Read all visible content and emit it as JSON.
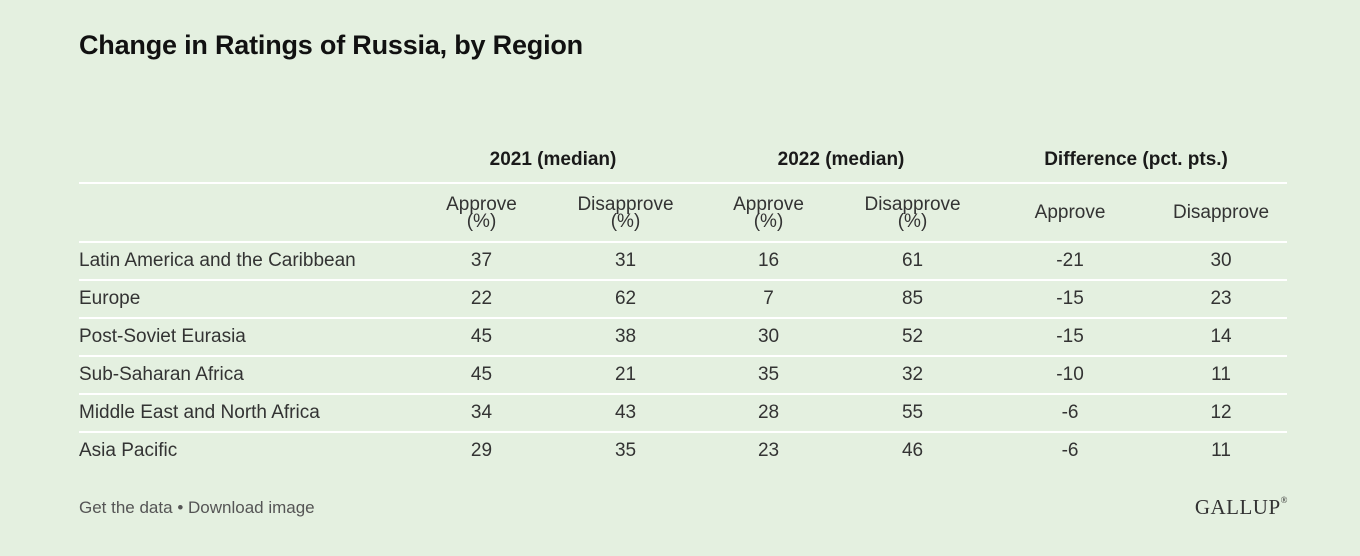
{
  "title": "Change in Ratings of Russia, by Region",
  "footer": {
    "get_data": "Get the data",
    "separator": "•",
    "download": "Download image"
  },
  "brand": {
    "logo_text": "GALLUP",
    "logo_mark": "®"
  },
  "colors": {
    "background": "#e4f0e0",
    "row_divider": "#ffffff",
    "text": "#333333"
  },
  "chart_data": {
    "type": "table",
    "title": "Change in Ratings of Russia, by Region",
    "column_groups": [
      "2021 (median)",
      "2022 (median)",
      "Difference (pct. pts.)"
    ],
    "columns": [
      {
        "line1": "Approve",
        "line2": "(%)"
      },
      {
        "line1": "Disapprove",
        "line2": "(%)"
      },
      {
        "line1": "Approve",
        "line2": "(%)"
      },
      {
        "line1": "Disapprove",
        "line2": "(%)"
      },
      {
        "line1": "Approve",
        "line2": ""
      },
      {
        "line1": "Disapprove",
        "line2": ""
      }
    ],
    "rows": [
      {
        "region": "Latin America and the Caribbean",
        "values": [
          "37",
          "31",
          "16",
          "61",
          "-21",
          "30"
        ]
      },
      {
        "region": "Europe",
        "values": [
          "22",
          "62",
          "7",
          "85",
          "-15",
          "23"
        ]
      },
      {
        "region": "Post-Soviet Eurasia",
        "values": [
          "45",
          "38",
          "30",
          "52",
          "-15",
          "14"
        ]
      },
      {
        "region": "Sub-Saharan Africa",
        "values": [
          "45",
          "21",
          "35",
          "32",
          "-10",
          "11"
        ]
      },
      {
        "region": "Middle East and North Africa",
        "values": [
          "34",
          "43",
          "28",
          "55",
          "-6",
          "12"
        ]
      },
      {
        "region": "Asia Pacific",
        "values": [
          "29",
          "35",
          "23",
          "46",
          "-6",
          "11"
        ]
      }
    ]
  }
}
